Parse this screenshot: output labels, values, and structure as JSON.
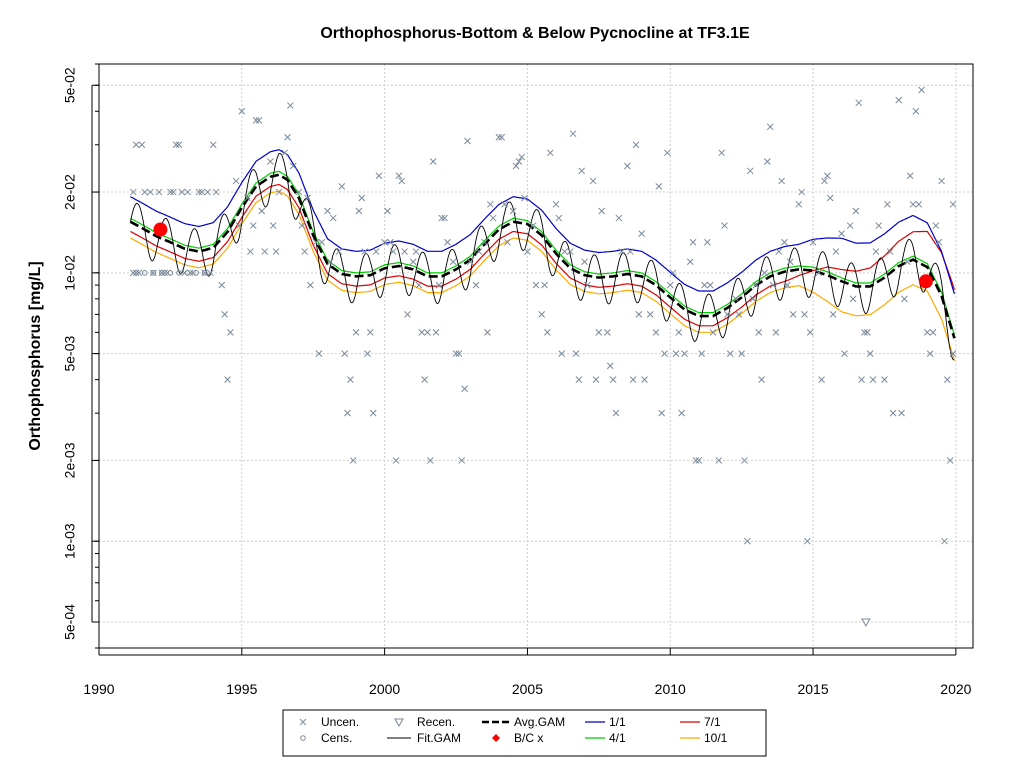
{
  "chart_data": {
    "type": "scatter",
    "title": "Orthophosphorus-Bottom & Below Pycnocline at TF3.1E",
    "xlabel": "",
    "ylabel": "Orthophosphorus [mg/L]",
    "x_scale": "linear",
    "y_scale": "log",
    "xlim": [
      1990,
      2020.6
    ],
    "ylim": [
      0.0004,
      0.06
    ],
    "grid": true,
    "x_ticks": [
      1990,
      1995,
      2000,
      2005,
      2010,
      2015,
      2020
    ],
    "x_tick_labels": [
      "1990",
      "1995",
      "2000",
      "2005",
      "2010",
      "2015",
      "2020"
    ],
    "y_ticks": [
      0.0005,
      0.001,
      0.002,
      0.005,
      0.01,
      0.02,
      0.05
    ],
    "y_tick_labels": [
      "5e-04",
      "1e-03",
      "2e-03",
      "5e-03",
      "1e-02",
      "2e-02",
      "5e-02"
    ],
    "series_style": {
      "uncen": "#7a8a9a",
      "fit": "#000000",
      "avg": "#000000",
      "d1_1": "#0000cc",
      "d4_1": "#00cc00",
      "d7_1": "#dd0000",
      "d10_1": "#ffaa00",
      "bc": "#ff0000"
    },
    "uncensored": [
      [
        1991.2,
        0.02
      ],
      [
        1991.3,
        0.03
      ],
      [
        1991.2,
        0.01
      ],
      [
        1991.3,
        0.01
      ],
      [
        1991.4,
        0.01
      ],
      [
        1991.5,
        0.03
      ],
      [
        1991.6,
        0.02
      ],
      [
        1991.8,
        0.02
      ],
      [
        1991.9,
        0.01
      ],
      [
        1992.1,
        0.02
      ],
      [
        1992.2,
        0.01
      ],
      [
        1992.3,
        0.01
      ],
      [
        1992.4,
        0.01
      ],
      [
        1992.5,
        0.02
      ],
      [
        1992.6,
        0.02
      ],
      [
        1992.7,
        0.03
      ],
      [
        1992.8,
        0.03
      ],
      [
        1992.9,
        0.02
      ],
      [
        1993.0,
        0.01
      ],
      [
        1993.1,
        0.02
      ],
      [
        1993.2,
        0.01
      ],
      [
        1993.3,
        0.01
      ],
      [
        1993.5,
        0.02
      ],
      [
        1993.6,
        0.02
      ],
      [
        1993.7,
        0.01
      ],
      [
        1993.8,
        0.02
      ],
      [
        1993.9,
        0.01
      ],
      [
        1994.0,
        0.03
      ],
      [
        1994.1,
        0.02
      ],
      [
        1994.3,
        0.009
      ],
      [
        1994.4,
        0.007
      ],
      [
        1994.5,
        0.004
      ],
      [
        1994.6,
        0.006
      ],
      [
        1994.8,
        0.022
      ],
      [
        1994.9,
        0.015
      ],
      [
        1995.0,
        0.04
      ],
      [
        1995.2,
        0.019
      ],
      [
        1995.3,
        0.012
      ],
      [
        1995.4,
        0.015
      ],
      [
        1995.5,
        0.037
      ],
      [
        1995.6,
        0.037
      ],
      [
        1995.7,
        0.017
      ],
      [
        1995.8,
        0.012
      ],
      [
        1996.0,
        0.026
      ],
      [
        1996.1,
        0.015
      ],
      [
        1996.2,
        0.012
      ],
      [
        1996.3,
        0.02
      ],
      [
        1996.5,
        0.028
      ],
      [
        1996.6,
        0.032
      ],
      [
        1996.7,
        0.042
      ],
      [
        1996.8,
        0.025
      ],
      [
        1997.0,
        0.02
      ],
      [
        1997.1,
        0.015
      ],
      [
        1997.2,
        0.012
      ],
      [
        1997.3,
        0.019
      ],
      [
        1997.4,
        0.009
      ],
      [
        1997.6,
        0.013
      ],
      [
        1997.7,
        0.005
      ],
      [
        1997.8,
        0.013
      ],
      [
        1998.0,
        0.017
      ],
      [
        1998.1,
        0.011
      ],
      [
        1998.2,
        0.016
      ],
      [
        1998.4,
        0.012
      ],
      [
        1998.5,
        0.021
      ],
      [
        1998.6,
        0.005
      ],
      [
        1998.7,
        0.003
      ],
      [
        1998.8,
        0.004
      ],
      [
        1998.9,
        0.002
      ],
      [
        1999.0,
        0.006
      ],
      [
        1999.1,
        0.017
      ],
      [
        1999.2,
        0.019
      ],
      [
        1999.3,
        0.012
      ],
      [
        1999.4,
        0.005
      ],
      [
        1999.5,
        0.006
      ],
      [
        1999.6,
        0.003
      ],
      [
        1999.7,
        0.012
      ],
      [
        1999.8,
        0.023
      ],
      [
        2000.0,
        0.013
      ],
      [
        2000.1,
        0.017
      ],
      [
        2000.2,
        0.013
      ],
      [
        2000.3,
        0.012
      ],
      [
        2000.4,
        0.002
      ],
      [
        2000.5,
        0.023
      ],
      [
        2000.6,
        0.022
      ],
      [
        2000.7,
        0.012
      ],
      [
        2000.8,
        0.007
      ],
      [
        2001.0,
        0.011
      ],
      [
        2001.1,
        0.012
      ],
      [
        2001.2,
        0.009
      ],
      [
        2001.3,
        0.006
      ],
      [
        2001.4,
        0.004
      ],
      [
        2001.5,
        0.006
      ],
      [
        2001.6,
        0.002
      ],
      [
        2001.7,
        0.026
      ],
      [
        2001.8,
        0.006
      ],
      [
        2001.9,
        0.009
      ],
      [
        2002.0,
        0.016
      ],
      [
        2002.1,
        0.016
      ],
      [
        2002.2,
        0.013
      ],
      [
        2002.4,
        0.011
      ],
      [
        2002.5,
        0.005
      ],
      [
        2002.6,
        0.005
      ],
      [
        2002.7,
        0.002
      ],
      [
        2002.8,
        0.0037
      ],
      [
        2002.9,
        0.031
      ],
      [
        2003.0,
        0.011
      ],
      [
        2003.2,
        0.009
      ],
      [
        2003.3,
        0.012
      ],
      [
        2003.5,
        0.013
      ],
      [
        2003.6,
        0.006
      ],
      [
        2003.7,
        0.018
      ],
      [
        2003.8,
        0.016
      ],
      [
        2004.0,
        0.032
      ],
      [
        2004.1,
        0.032
      ],
      [
        2004.2,
        0.018
      ],
      [
        2004.3,
        0.013
      ],
      [
        2004.5,
        0.017
      ],
      [
        2004.6,
        0.025
      ],
      [
        2004.7,
        0.026
      ],
      [
        2004.8,
        0.027
      ],
      [
        2004.9,
        0.019
      ],
      [
        2005.0,
        0.012
      ],
      [
        2005.2,
        0.015
      ],
      [
        2005.3,
        0.009
      ],
      [
        2005.5,
        0.007
      ],
      [
        2005.6,
        0.009
      ],
      [
        2005.7,
        0.006
      ],
      [
        2005.8,
        0.028
      ],
      [
        2006.0,
        0.018
      ],
      [
        2006.1,
        0.016
      ],
      [
        2006.2,
        0.005
      ],
      [
        2006.3,
        0.012
      ],
      [
        2006.5,
        0.012
      ],
      [
        2006.6,
        0.033
      ],
      [
        2006.7,
        0.005
      ],
      [
        2006.8,
        0.004
      ],
      [
        2006.9,
        0.024
      ],
      [
        2007.0,
        0.011
      ],
      [
        2007.1,
        0.009
      ],
      [
        2007.3,
        0.022
      ],
      [
        2007.4,
        0.004
      ],
      [
        2007.5,
        0.006
      ],
      [
        2007.6,
        0.017
      ],
      [
        2007.8,
        0.006
      ],
      [
        2007.9,
        0.0045
      ],
      [
        2008.0,
        0.004
      ],
      [
        2008.1,
        0.003
      ],
      [
        2008.2,
        0.016
      ],
      [
        2008.3,
        0.012
      ],
      [
        2008.5,
        0.025
      ],
      [
        2008.6,
        0.012
      ],
      [
        2008.7,
        0.004
      ],
      [
        2008.8,
        0.03
      ],
      [
        2008.9,
        0.007
      ],
      [
        2009.0,
        0.014
      ],
      [
        2009.1,
        0.004
      ],
      [
        2009.3,
        0.007
      ],
      [
        2009.5,
        0.006
      ],
      [
        2009.6,
        0.021
      ],
      [
        2009.7,
        0.003
      ],
      [
        2009.8,
        0.005
      ],
      [
        2009.9,
        0.028
      ],
      [
        2010.0,
        0.009
      ],
      [
        2010.1,
        0.01
      ],
      [
        2010.2,
        0.005
      ],
      [
        2010.3,
        0.006
      ],
      [
        2010.4,
        0.003
      ],
      [
        2010.5,
        0.005
      ],
      [
        2010.7,
        0.011
      ],
      [
        2010.8,
        0.013
      ],
      [
        2010.9,
        0.002
      ],
      [
        2011.0,
        0.002
      ],
      [
        2011.1,
        0.005
      ],
      [
        2011.2,
        0.009
      ],
      [
        2011.3,
        0.013
      ],
      [
        2011.4,
        0.009
      ],
      [
        2011.5,
        0.006
      ],
      [
        2011.7,
        0.002
      ],
      [
        2011.8,
        0.028
      ],
      [
        2011.9,
        0.015
      ],
      [
        2012.0,
        0.007
      ],
      [
        2012.1,
        0.005
      ],
      [
        2012.3,
        0.008
      ],
      [
        2012.4,
        0.007
      ],
      [
        2012.5,
        0.005
      ],
      [
        2012.6,
        0.002
      ],
      [
        2012.7,
        0.001
      ],
      [
        2012.8,
        0.024
      ],
      [
        2012.9,
        0.008
      ],
      [
        2013.0,
        0.009
      ],
      [
        2013.1,
        0.006
      ],
      [
        2013.2,
        0.004
      ],
      [
        2013.3,
        0.01
      ],
      [
        2013.4,
        0.026
      ],
      [
        2013.5,
        0.035
      ],
      [
        2013.6,
        0.009
      ],
      [
        2013.7,
        0.006
      ],
      [
        2013.8,
        0.012
      ],
      [
        2013.9,
        0.022
      ],
      [
        2014.0,
        0.013
      ],
      [
        2014.1,
        0.009
      ],
      [
        2014.2,
        0.011
      ],
      [
        2014.3,
        0.007
      ],
      [
        2014.5,
        0.018
      ],
      [
        2014.6,
        0.02
      ],
      [
        2014.7,
        0.007
      ],
      [
        2014.8,
        0.001
      ],
      [
        2014.9,
        0.006
      ],
      [
        2015.0,
        0.013
      ],
      [
        2015.2,
        0.01
      ],
      [
        2015.3,
        0.004
      ],
      [
        2015.4,
        0.022
      ],
      [
        2015.5,
        0.023
      ],
      [
        2015.6,
        0.019
      ],
      [
        2015.7,
        0.007
      ],
      [
        2015.8,
        0.012
      ],
      [
        2016.0,
        0.014
      ],
      [
        2016.1,
        0.005
      ],
      [
        2016.3,
        0.015
      ],
      [
        2016.4,
        0.008
      ],
      [
        2016.5,
        0.017
      ],
      [
        2016.6,
        0.043
      ],
      [
        2016.7,
        0.004
      ],
      [
        2016.8,
        0.006
      ],
      [
        2016.9,
        0.006
      ],
      [
        2017.0,
        0.005
      ],
      [
        2017.1,
        0.004
      ],
      [
        2017.2,
        0.012
      ],
      [
        2017.3,
        0.015
      ],
      [
        2017.5,
        0.004
      ],
      [
        2017.6,
        0.018
      ],
      [
        2017.7,
        0.012
      ],
      [
        2017.8,
        0.003
      ],
      [
        2018.0,
        0.044
      ],
      [
        2018.1,
        0.003
      ],
      [
        2018.2,
        0.008
      ],
      [
        2018.3,
        0.011
      ],
      [
        2018.4,
        0.023
      ],
      [
        2018.5,
        0.018
      ],
      [
        2018.6,
        0.04
      ],
      [
        2018.7,
        0.018
      ],
      [
        2018.8,
        0.048
      ],
      [
        2018.9,
        0.009
      ],
      [
        2019.0,
        0.006
      ],
      [
        2019.1,
        0.005
      ],
      [
        2019.2,
        0.006
      ],
      [
        2019.3,
        0.015
      ],
      [
        2019.4,
        0.013
      ],
      [
        2019.5,
        0.022
      ],
      [
        2019.6,
        0.001
      ],
      [
        2019.7,
        0.004
      ],
      [
        2019.8,
        0.002
      ],
      [
        2019.9,
        0.005
      ],
      [
        2019.9,
        0.018
      ]
    ],
    "censored": [
      [
        1991.3,
        0.01
      ],
      [
        1991.6,
        0.01
      ],
      [
        1991.9,
        0.01
      ],
      [
        1992.2,
        0.01
      ],
      [
        1992.5,
        0.01
      ],
      [
        1992.8,
        0.01
      ],
      [
        1993.1,
        0.01
      ],
      [
        1993.4,
        0.01
      ],
      [
        1993.7,
        0.01
      ]
    ],
    "recensored": [
      [
        2016.85,
        0.0005
      ]
    ],
    "bc_points": [
      [
        1992.15,
        0.0145
      ],
      [
        2018.95,
        0.0093
      ]
    ],
    "avg_gam": [
      [
        1991.1,
        0.0155
      ],
      [
        1991.5,
        0.0147
      ],
      [
        1992,
        0.0137
      ],
      [
        1992.5,
        0.013
      ],
      [
        1993,
        0.0123
      ],
      [
        1993.5,
        0.012
      ],
      [
        1994,
        0.0124
      ],
      [
        1994.5,
        0.0142
      ],
      [
        1995,
        0.0175
      ],
      [
        1995.5,
        0.021
      ],
      [
        1996,
        0.0228
      ],
      [
        1996.3,
        0.0232
      ],
      [
        1996.6,
        0.0222
      ],
      [
        1997,
        0.019
      ],
      [
        1997.5,
        0.0138
      ],
      [
        1998,
        0.0108
      ],
      [
        1998.5,
        0.0099
      ],
      [
        1999,
        0.0097
      ],
      [
        1999.5,
        0.0098
      ],
      [
        2000,
        0.0104
      ],
      [
        2000.5,
        0.0106
      ],
      [
        2001,
        0.0103
      ],
      [
        2001.5,
        0.0097
      ],
      [
        2002,
        0.0097
      ],
      [
        2002.5,
        0.0103
      ],
      [
        2003,
        0.0112
      ],
      [
        2003.5,
        0.0128
      ],
      [
        2004,
        0.0145
      ],
      [
        2004.5,
        0.0155
      ],
      [
        2005,
        0.0152
      ],
      [
        2005.5,
        0.0138
      ],
      [
        2006,
        0.0118
      ],
      [
        2006.5,
        0.0104
      ],
      [
        2007,
        0.0098
      ],
      [
        2007.5,
        0.0096
      ],
      [
        2008,
        0.0097
      ],
      [
        2008.5,
        0.0099
      ],
      [
        2009,
        0.0097
      ],
      [
        2009.5,
        0.009
      ],
      [
        2010,
        0.0081
      ],
      [
        2010.5,
        0.0073
      ],
      [
        2011,
        0.0069
      ],
      [
        2011.5,
        0.0069
      ],
      [
        2012,
        0.0074
      ],
      [
        2012.5,
        0.0081
      ],
      [
        2013,
        0.009
      ],
      [
        2013.5,
        0.0097
      ],
      [
        2014,
        0.0101
      ],
      [
        2014.5,
        0.0103
      ],
      [
        2015,
        0.0102
      ],
      [
        2015.5,
        0.0098
      ],
      [
        2016,
        0.0093
      ],
      [
        2016.5,
        0.0089
      ],
      [
        2017,
        0.0089
      ],
      [
        2017.5,
        0.0096
      ],
      [
        2018,
        0.0106
      ],
      [
        2018.5,
        0.0112
      ],
      [
        2019,
        0.0105
      ],
      [
        2019.5,
        0.0082
      ],
      [
        2019.95,
        0.0057
      ]
    ],
    "fit_gam_amplitude": 0.13,
    "day_factors": {
      "d1_1": 1.24,
      "d4_1": 1.03,
      "d7_1": 0.92,
      "d10_1": 0.87
    },
    "late_adjust": {
      "d1_1": [
        [
          2014.5,
          1.16
        ],
        [
          2019.0,
          1.18
        ]
      ],
      "d7_1": [
        [
          2014.0,
          1.06
        ],
        [
          2018.5,
          1.38
        ],
        [
          2019.9,
          1.65
        ]
      ],
      "d10_1": [
        [
          2014.5,
          0.86
        ],
        [
          2019.9,
          0.95
        ]
      ]
    },
    "legend": {
      "uncen": "Uncen.",
      "cens": "Cens.",
      "recen": "Recen.",
      "fit": "Fit.GAM",
      "avg": "Avg.GAM",
      "bc": "B/C x",
      "d1_1": "1/1",
      "d4_1": "4/1",
      "d7_1": "7/1",
      "d10_1": "10/1"
    }
  }
}
